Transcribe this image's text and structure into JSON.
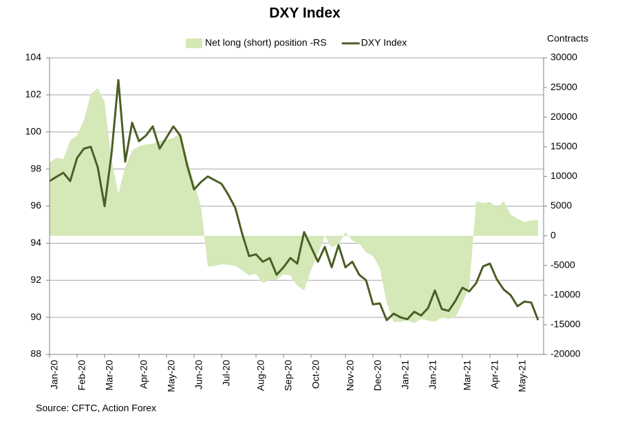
{
  "chart_data": {
    "type": "line",
    "title": "DXY Index",
    "y2_label": "Contracts",
    "source": "Source: CFTC, Action Forex",
    "categories": [
      "Jan-20",
      null,
      null,
      null,
      "Feb-20",
      null,
      null,
      null,
      "Mar-20",
      null,
      null,
      null,
      null,
      "Apr-20",
      null,
      null,
      null,
      "May-20",
      null,
      null,
      null,
      "Jun-20",
      null,
      null,
      null,
      "Jul-20",
      null,
      null,
      null,
      null,
      "Aug-20",
      null,
      null,
      null,
      "Sep-20",
      null,
      null,
      null,
      "Oct-20",
      null,
      null,
      null,
      null,
      "Nov-20",
      null,
      null,
      null,
      "Dec-20",
      null,
      null,
      null,
      "Jan-21",
      null,
      null,
      null,
      "Jan-21",
      null,
      null,
      null,
      null,
      "Mar-21",
      null,
      null,
      null,
      "Apr-21",
      null,
      null,
      null,
      "May-21",
      null,
      null,
      null
    ],
    "series": [
      {
        "name": "Net long (short) position -RS",
        "kind": "area",
        "axis": "y2",
        "color": "#d5e8b8",
        "values": [
          12300,
          13200,
          12900,
          16100,
          16900,
          19500,
          23900,
          24900,
          22600,
          12900,
          7100,
          11600,
          14400,
          15100,
          15400,
          15500,
          16000,
          16200,
          16500,
          17200,
          12900,
          9000,
          5000,
          -5200,
          -5100,
          -4800,
          -4900,
          -5100,
          -5800,
          -6700,
          -6400,
          -8000,
          -7400,
          -7400,
          -6500,
          -6700,
          -8400,
          -9200,
          -5800,
          -3100,
          0,
          -2000,
          -1400,
          600,
          -800,
          -1300,
          -2800,
          -3400,
          -5500,
          -11300,
          -14500,
          -14500,
          -14300,
          -14700,
          -14000,
          -14300,
          -14500,
          -13800,
          -14000,
          -13700,
          -11300,
          -8700,
          5800,
          5500,
          5700,
          4800,
          5800,
          3600,
          2900,
          2300,
          2600,
          2700
        ]
      },
      {
        "name": "DXY Index",
        "kind": "line",
        "color": "#4b5e24",
        "values": [
          97.35,
          97.58,
          97.8,
          97.35,
          98.6,
          99.1,
          99.2,
          98.1,
          96.0,
          98.8,
          102.8,
          98.4,
          100.5,
          99.5,
          99.8,
          100.3,
          99.1,
          99.7,
          100.3,
          99.8,
          98.2,
          96.9,
          97.3,
          97.6,
          97.4,
          97.2,
          96.6,
          95.9,
          94.5,
          93.3,
          93.4,
          93.0,
          93.2,
          92.3,
          92.7,
          93.2,
          92.9,
          94.6,
          93.8,
          93.0,
          93.8,
          92.7,
          93.9,
          92.7,
          93.0,
          92.3,
          92.0,
          90.7,
          90.75,
          89.85,
          90.2,
          90.0,
          89.9,
          90.3,
          90.1,
          90.5,
          91.45,
          90.45,
          90.35,
          90.9,
          91.6,
          91.4,
          91.85,
          92.75,
          92.9,
          92.05,
          91.5,
          91.2,
          90.6,
          90.85,
          90.8,
          89.85
        ]
      }
    ],
    "ylim": [
      88,
      104
    ],
    "yticks": [
      88,
      90,
      92,
      94,
      96,
      98,
      100,
      102,
      104
    ],
    "y2lim": [
      -20000,
      30000
    ],
    "y2ticks": [
      -20000,
      -15000,
      -10000,
      -5000,
      0,
      5000,
      10000,
      15000,
      20000,
      25000,
      30000
    ],
    "grid": true,
    "legend": "top"
  }
}
